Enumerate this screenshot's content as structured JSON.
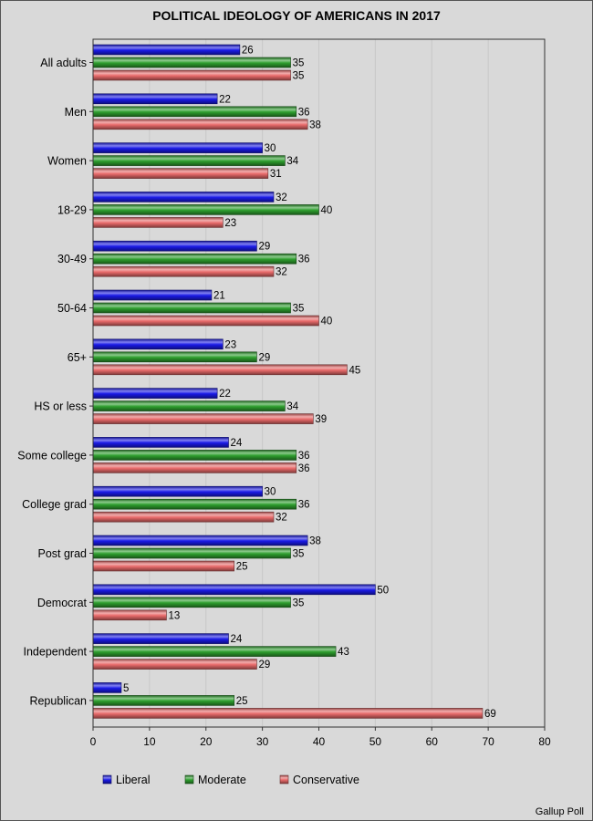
{
  "chart_data": {
    "type": "bar",
    "orientation": "horizontal",
    "title": "POLITICAL IDEOLOGY OF AMERICANS IN 2017",
    "categories": [
      "All adults",
      "Men",
      "Women",
      "18-29",
      "30-49",
      "50-64",
      "65+",
      "HS or less",
      "Some college",
      "College grad",
      "Post grad",
      "Democrat",
      "Independent",
      "Republican"
    ],
    "series": [
      {
        "name": "Liberal",
        "color": "#1a1ae6",
        "values": [
          26,
          22,
          30,
          32,
          29,
          21,
          23,
          22,
          24,
          30,
          38,
          50,
          24,
          5
        ]
      },
      {
        "name": "Moderate",
        "color": "#2e9e2e",
        "values": [
          35,
          36,
          34,
          40,
          36,
          35,
          29,
          34,
          36,
          36,
          35,
          35,
          43,
          25
        ]
      },
      {
        "name": "Conservative",
        "color": "#e86a6a",
        "values": [
          35,
          38,
          31,
          23,
          32,
          40,
          45,
          39,
          36,
          32,
          25,
          13,
          29,
          69
        ]
      }
    ],
    "xlim": [
      0,
      80
    ],
    "xticks": [
      0,
      10,
      20,
      30,
      40,
      50,
      60,
      70,
      80
    ],
    "grid": true,
    "legend": "bottom",
    "source": "Gallup Poll",
    "colors": {
      "background": "#d9d9d9",
      "gridline": "#c8c8c8",
      "axis": "#333333"
    }
  }
}
